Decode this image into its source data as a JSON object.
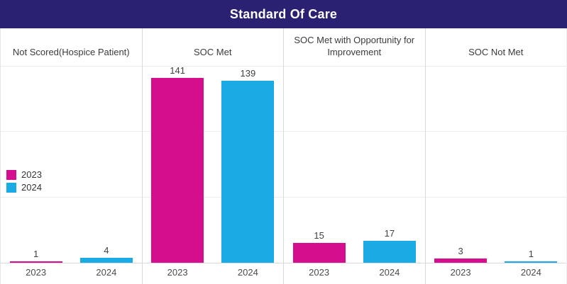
{
  "header": {
    "title": "Standard Of Care"
  },
  "colors": {
    "header_bg": "#2b2172",
    "header_text": "#ffffff",
    "series_2023": "#d40e8c",
    "series_2024": "#1aabe5",
    "divider": "#d9d9d9",
    "gridline": "#ececec",
    "label_text": "#3f3f3f"
  },
  "chart_data": {
    "type": "bar",
    "title": "Standard Of Care",
    "categories": [
      "Not Scored(Hospice Patient)",
      "SOC Met",
      "SOC Met with Opportunity for Improvement",
      "SOC Not Met"
    ],
    "series": [
      {
        "name": "2023",
        "color": "#d40e8c",
        "values": [
          1,
          141,
          15,
          3
        ]
      },
      {
        "name": "2024",
        "color": "#1aabe5",
        "values": [
          4,
          139,
          17,
          1
        ]
      }
    ],
    "xlabel": "",
    "ylabel": "",
    "ylim": [
      0,
      152
    ],
    "gridline_step": 50,
    "grid": true,
    "value_labels": true,
    "legend_position": "middle-left",
    "legend_entries": [
      "2023",
      "2024"
    ]
  }
}
